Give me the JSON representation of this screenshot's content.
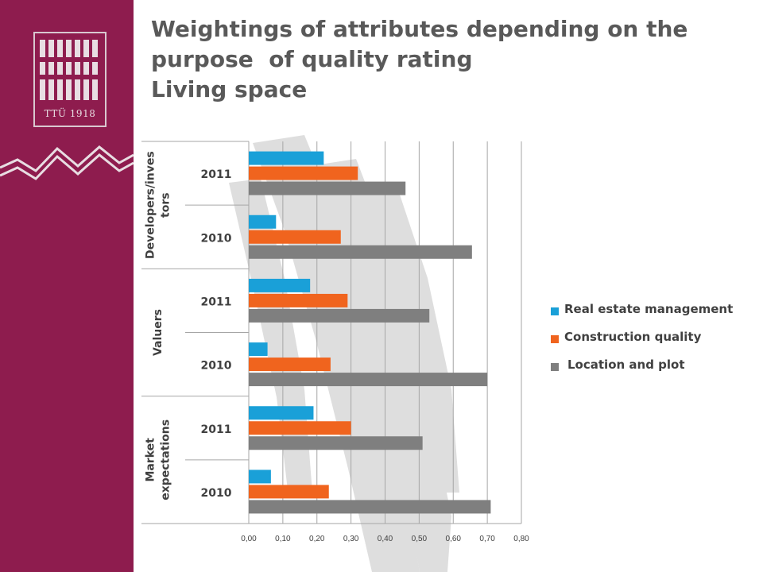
{
  "colors": {
    "sidebar": "#8e1c4e",
    "text": "#404040",
    "axis": "#a6a6a6"
  },
  "logo": {
    "text": "TTÜ 1918"
  },
  "title": {
    "line1": "Weightings of attributes depending on the",
    "line2": "purpose  of quality rating",
    "line3": "Living space"
  },
  "chart_data": {
    "type": "bar",
    "orientation": "horizontal",
    "groups": [
      {
        "label_lines": [
          "Developers/inves",
          "tors"
        ],
        "categories": [
          "2011",
          "2010"
        ]
      },
      {
        "label_lines": [
          "Valuers"
        ],
        "categories": [
          "2011",
          "2010"
        ]
      },
      {
        "label_lines": [
          "Market",
          "expectations"
        ],
        "categories": [
          "2011",
          "2010"
        ]
      }
    ],
    "series": [
      {
        "name": "Real estate management",
        "color": "#1aa0d8",
        "values": [
          0.22,
          0.08,
          0.18,
          0.055,
          0.19,
          0.065
        ]
      },
      {
        "name": "Construction quality",
        "color": "#f0641e",
        "values": [
          0.32,
          0.27,
          0.29,
          0.24,
          0.3,
          0.235
        ]
      },
      {
        "name": "Location and plot",
        "color": "#7f7f7f",
        "values": [
          0.46,
          0.655,
          0.53,
          0.7,
          0.51,
          0.71
        ]
      }
    ],
    "xlim": [
      0,
      0.8
    ],
    "xticks": [
      "0,00",
      "0,10",
      "0,20",
      "0,30",
      "0,40",
      "0,50",
      "0,60",
      "0,70",
      "0,80"
    ],
    "grid": true,
    "legend": "right"
  }
}
